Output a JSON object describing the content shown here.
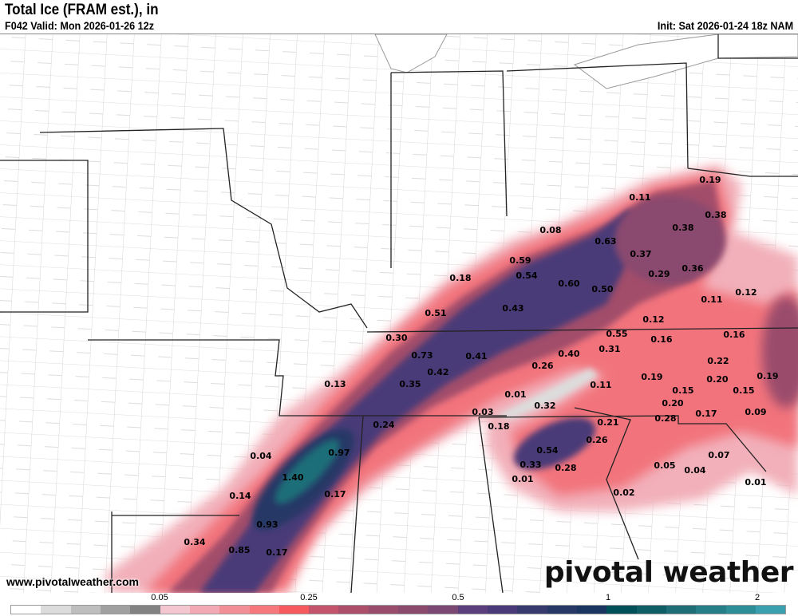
{
  "header": {
    "title": "Total Ice (FRAM est.), in",
    "valid": "F042 Valid: Mon 2026-01-26 12z",
    "init": "Init: Sat 2026-01-24 18z NAM"
  },
  "map": {
    "variable": "Total Ice (FRAM est.)",
    "units": "in",
    "point_values": [
      "0.19",
      "0.11",
      "0.38",
      "0.38",
      "0.08",
      "0.63",
      "0.37",
      "0.59",
      "0.36",
      "0.29",
      "0.54",
      "0.18",
      "0.60",
      "0.50",
      "0.11",
      "0.12",
      "0.51",
      "0.43",
      "0.12",
      "0.55",
      "0.16",
      "0.16",
      "0.30",
      "0.73",
      "0.41",
      "0.40",
      "0.31",
      "0.22",
      "0.42",
      "0.26",
      "0.19",
      "0.20",
      "0.19",
      "0.13",
      "0.35",
      "0.11",
      "0.15",
      "0.15",
      "0.01",
      "0.32",
      "0.20",
      "0.17",
      "0.09",
      "0.03",
      "0.28",
      "0.24",
      "0.18",
      "0.21",
      "0.26",
      "0.54",
      "0.97",
      "0.04",
      "0.07",
      "0.33",
      "0.28",
      "0.05",
      "0.04",
      "1.40",
      "0.01",
      "0.01",
      "0.14",
      "0.17",
      "0.02",
      "0.93",
      "0.34",
      "0.85",
      "0.17"
    ]
  },
  "branding": {
    "url": "www.pivotalweather.com",
    "logo": "pivotal weather"
  },
  "colorbar": {
    "tick_labels": [
      "0.05",
      "0.25",
      "0.5",
      "1",
      "2"
    ],
    "colors": [
      "#ffffff",
      "#dcdcdc",
      "#bebebe",
      "#a0a0a0",
      "#828282",
      "#f4c6cf",
      "#f2a9b3",
      "#f28e96",
      "#f6787c",
      "#f65a5c",
      "#c4546c",
      "#ac4f6a",
      "#9a4c6c",
      "#8a4a6e",
      "#7a4872",
      "#5a3f7c",
      "#4a3b78",
      "#363a6c",
      "#283866",
      "#1a3560",
      "#00505a",
      "#0e5e66",
      "#1e6e78",
      "#267e88",
      "#2e8e98",
      "#3aa0b0"
    ]
  }
}
